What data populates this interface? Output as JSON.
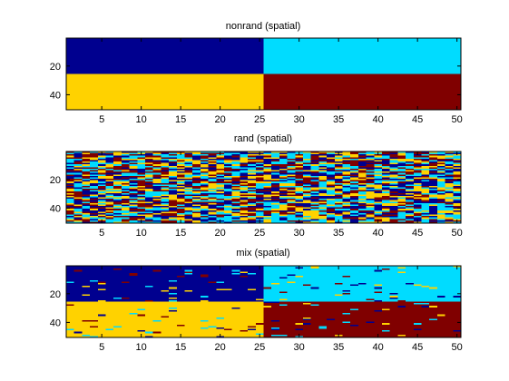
{
  "figure": {
    "colormap": [
      "#00008f",
      "#00dcff",
      "#ffd200",
      "#800000"
    ],
    "background": "#ffffff"
  },
  "chart_data": [
    {
      "type": "heatmap",
      "title": "nonrand (spatial)",
      "x_ticks": [
        5,
        10,
        15,
        20,
        25,
        30,
        35,
        40,
        45,
        50
      ],
      "y_ticks": [
        20,
        40
      ],
      "xlim": [
        0.5,
        50.5
      ],
      "ylim": [
        0.5,
        50.5
      ],
      "grid": "off",
      "pattern": "quadrants",
      "quadrants": {
        "top_left": "#00008f",
        "top_right": "#00dcff",
        "bottom_left": "#ffd200",
        "bottom_right": "#800000"
      },
      "split_x": 25.5,
      "split_y": 25.5,
      "noise_fraction": 0
    },
    {
      "type": "heatmap",
      "title": "rand (spatial)",
      "x_ticks": [
        5,
        10,
        15,
        20,
        25,
        30,
        35,
        40,
        45,
        50
      ],
      "y_ticks": [
        20,
        40
      ],
      "xlim": [
        0.5,
        50.5
      ],
      "ylim": [
        0.5,
        50.5
      ],
      "grid": "off",
      "pattern": "random",
      "noise_fraction": 1
    },
    {
      "type": "heatmap",
      "title": "mix (spatial)",
      "x_ticks": [
        5,
        10,
        15,
        20,
        25,
        30,
        35,
        40,
        45,
        50
      ],
      "y_ticks": [
        20,
        40
      ],
      "xlim": [
        0.5,
        50.5
      ],
      "ylim": [
        0.5,
        50.5
      ],
      "grid": "off",
      "pattern": "quadrants-with-noise",
      "quadrants": {
        "top_left": "#00008f",
        "top_right": "#00dcff",
        "bottom_left": "#ffd200",
        "bottom_right": "#800000"
      },
      "split_x": 25.5,
      "split_y": 25.5,
      "noise_fraction": 0.08
    }
  ]
}
